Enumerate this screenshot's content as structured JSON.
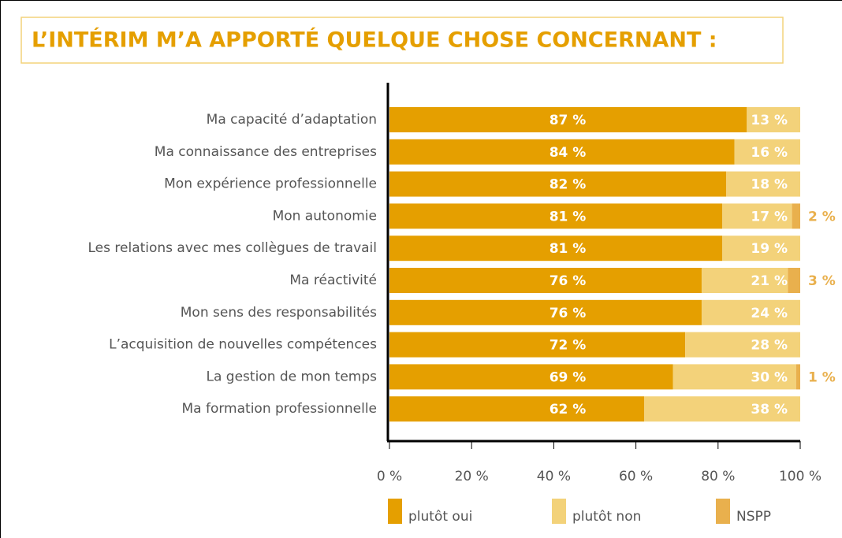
{
  "chart_data": {
    "type": "stacked_barh",
    "title": "L’INTÉRIM M’A APPORTÉ QUELQUE CHOSE CONCERNANT :",
    "categories": [
      "Ma capacité d’adaptation",
      "Ma connaissance des entreprises",
      "Mon expérience professionnelle",
      "Mon autonomie",
      "Les relations avec mes collègues de travail",
      "Ma réactivité",
      "Mon sens des responsabilités",
      "L’acquisition de nouvelles compétences",
      "La gestion de mon temps",
      "Ma formation professionnelle"
    ],
    "series": [
      {
        "name": "plutôt oui",
        "color": "#e59f00",
        "values": [
          87,
          84,
          82,
          81,
          81,
          76,
          76,
          72,
          69,
          62
        ],
        "value_labels": [
          "87 %",
          "84 %",
          "82 %",
          "81 %",
          "81 %",
          "76 %",
          "76 %",
          "72 %",
          "69 %",
          "62 %"
        ]
      },
      {
        "name": "plutôt non",
        "color": "#f3d27a",
        "values": [
          13,
          16,
          18,
          17,
          19,
          21,
          24,
          28,
          30,
          38
        ],
        "value_labels": [
          "13 %",
          "16 %",
          "18 %",
          "17 %",
          "19 %",
          "21 %",
          "24 %",
          "28 %",
          "30 %",
          "38 %"
        ]
      },
      {
        "name": "NSPP",
        "color": "#e9b04d",
        "values": [
          null,
          null,
          null,
          2,
          null,
          3,
          null,
          null,
          1,
          null
        ],
        "value_labels": [
          null,
          null,
          null,
          "2 %",
          null,
          "3 %",
          null,
          null,
          "1 %",
          null
        ]
      }
    ],
    "xlim": [
      0,
      100
    ],
    "xticks": [
      {
        "value": 0,
        "label": "0 %"
      },
      {
        "value": 20,
        "label": "20 %"
      },
      {
        "value": 40,
        "label": "40 %"
      },
      {
        "value": 60,
        "label": "60 %"
      },
      {
        "value": 80,
        "label": "80 %"
      },
      {
        "value": 100,
        "label": "100 %"
      }
    ]
  }
}
